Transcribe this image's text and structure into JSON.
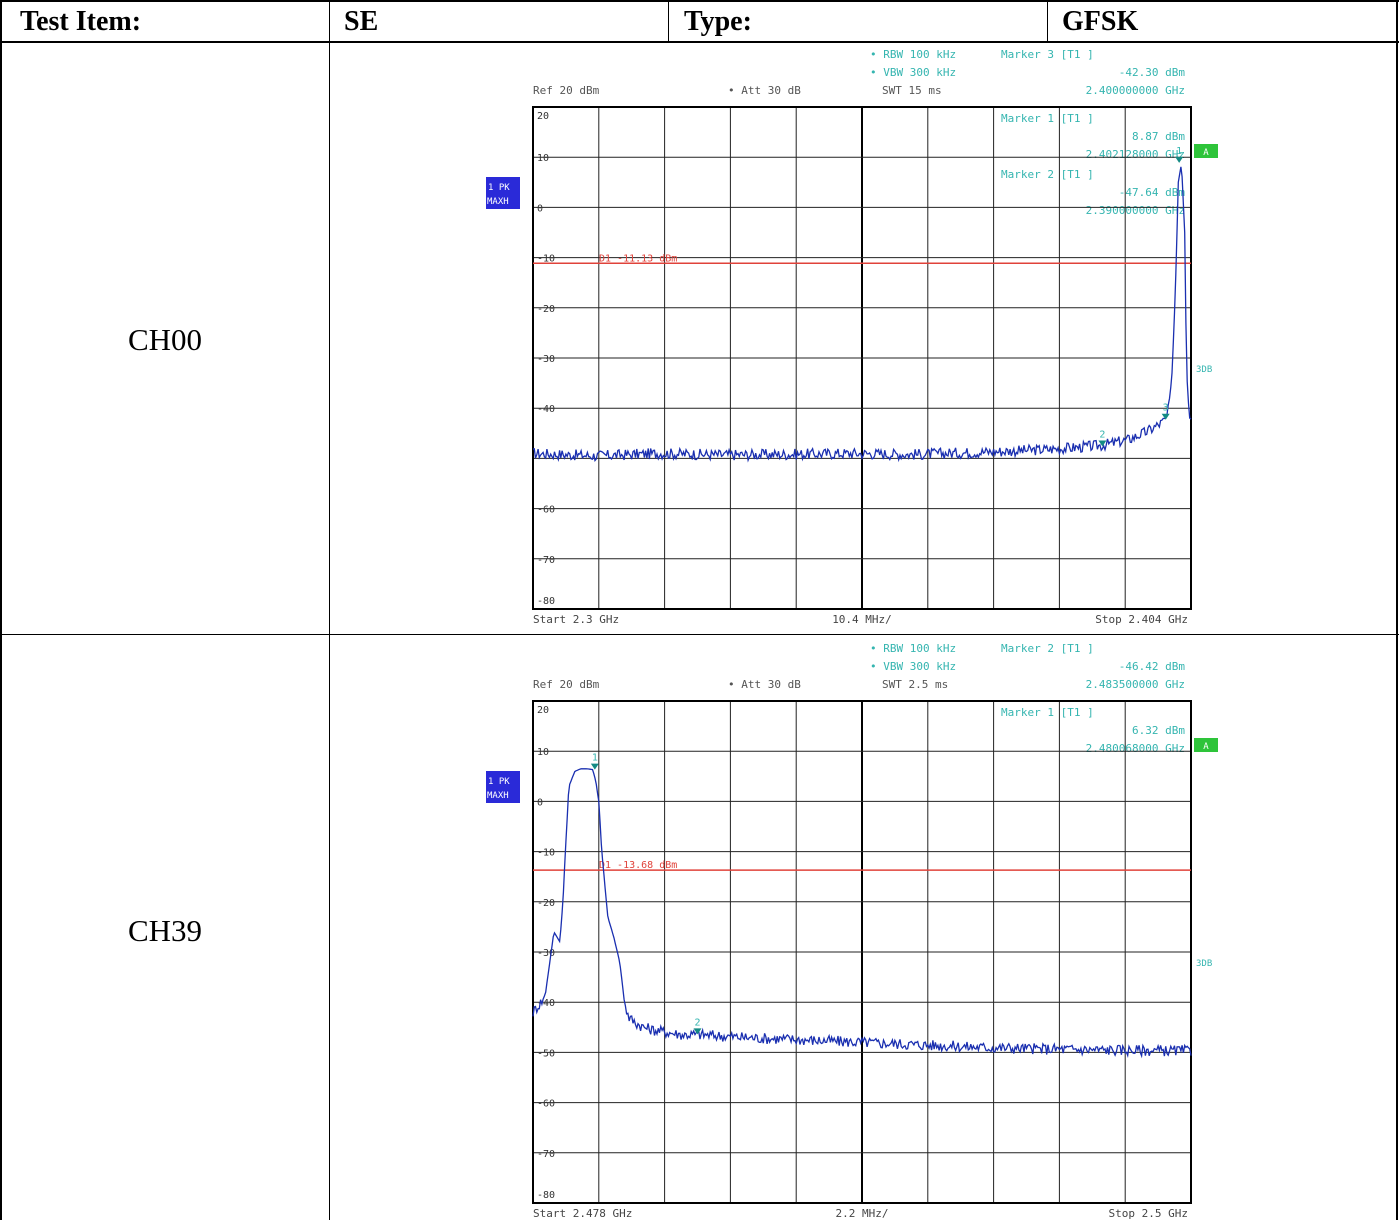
{
  "header": {
    "test_item_label": "Test Item:",
    "test_item_value": "SE",
    "type_label": "Type:",
    "type_value": "GFSK"
  },
  "colors": {
    "trace": "#1a2fb0",
    "limit_line": "#e0423a",
    "annotation": "#35b5b0",
    "marker": "#138a84",
    "badge_blue": "#2a2ad8",
    "badge_green": "#2ec43a"
  },
  "rows": [
    {
      "channel": "CH00",
      "plot": {
        "settings": {
          "rbw": "RBW 100 kHz",
          "vbw": "VBW 300 kHz",
          "ref": "Ref  20 dBm",
          "att": "Att  30 dB",
          "swt": "SWT 15 ms"
        },
        "marker_readouts": [
          {
            "label": "Marker 3 [T1 ]",
            "level": "-42.30 dBm",
            "freq": "2.400000000 GHz"
          },
          {
            "label": "Marker 1 [T1 ]",
            "level": "8.87 dBm",
            "freq": "2.402128000 GHz"
          },
          {
            "label": "Marker 2 [T1 ]",
            "level": "-47.64 dBm",
            "freq": "2.390000000 GHz"
          }
        ],
        "trace_badge": [
          "1 PK",
          "MAXH"
        ],
        "badge_a": "A",
        "side_label": "3DB",
        "limit_label": "D1 -11.13 dBm",
        "start": "Start 2.3 GHz",
        "span_div": "10.4 MHz/",
        "stop": "Stop 2.404 GHz"
      },
      "chart_data": {
        "type": "line",
        "x_range_ghz": [
          2.3,
          2.404
        ],
        "ylim": [
          -80,
          20
        ],
        "y_ticks": [
          20,
          10,
          0,
          -10,
          -20,
          -30,
          -40,
          -60,
          -70,
          -80
        ],
        "y_tick_labels": [
          "20",
          "10",
          "0",
          "-10",
          "-20",
          "-30",
          "-40",
          "-60",
          "-70",
          "-80"
        ],
        "grid": true,
        "limit_line_dbm": -11.13,
        "markers": [
          {
            "id": "1",
            "x_ghz": 2.402128,
            "y_dbm": 8.87
          },
          {
            "id": "2",
            "x_ghz": 2.39,
            "y_dbm": -47.64
          },
          {
            "id": "3",
            "x_ghz": 2.4,
            "y_dbm": -42.3
          }
        ],
        "series": [
          {
            "x": [
              2.3,
              2.31,
              2.32,
              2.33,
              2.34,
              2.35,
              2.36,
              2.37,
              2.38,
              2.385,
              2.39,
              2.394,
              2.397,
              2.399,
              2.4,
              2.4005,
              2.401,
              2.4015,
              2.402,
              2.4025,
              2.403,
              2.4033,
              2.4036,
              2.404
            ],
            "y": [
              -49,
              -49.5,
              -49,
              -49.3,
              -49.2,
              -49,
              -49.2,
              -48.8,
              -48.3,
              -47.9,
              -47.4,
              -46.3,
              -44.7,
              -43.2,
              -42.3,
              -40,
              -33,
              -18,
              5,
              8.87,
              -5,
              -32,
              -40,
              -42
            ]
          }
        ]
      }
    },
    {
      "channel": "CH39",
      "plot": {
        "settings": {
          "rbw": "RBW 100 kHz",
          "vbw": "VBW 300 kHz",
          "ref": "Ref  20 dBm",
          "att": "Att  30 dB",
          "swt": "SWT 2.5 ms"
        },
        "marker_readouts": [
          {
            "label": "Marker 2 [T1 ]",
            "level": "-46.42 dBm",
            "freq": "2.483500000 GHz"
          },
          {
            "label": "Marker 1 [T1 ]",
            "level": "6.32 dBm",
            "freq": "2.480068000 GHz"
          }
        ],
        "trace_badge": [
          "1 PK",
          "MAXH"
        ],
        "badge_a": "A",
        "side_label": "3DB",
        "limit_label": "D1 -13.68 dBm",
        "start": "Start 2.478 GHz",
        "span_div": "2.2 MHz/",
        "stop": "Stop 2.5 GHz"
      },
      "chart_data": {
        "type": "line",
        "x_range_ghz": [
          2.478,
          2.5
        ],
        "ylim": [
          -80,
          20
        ],
        "y_ticks": [
          20,
          10,
          0,
          -10,
          -20,
          -30,
          -40,
          -50,
          -60,
          -70,
          -80
        ],
        "y_tick_labels": [
          "20",
          "10",
          "0",
          "-10",
          "-20",
          "-30",
          "-40",
          "-50",
          "-60",
          "-70",
          "-80"
        ],
        "grid": true,
        "limit_line_dbm": -13.68,
        "markers": [
          {
            "id": "1",
            "x_ghz": 2.480068,
            "y_dbm": 6.32
          },
          {
            "id": "2",
            "x_ghz": 2.4835,
            "y_dbm": -46.42
          }
        ],
        "series": [
          {
            "x": [
              2.478,
              2.4784,
              2.4787,
              2.4789,
              2.479,
              2.4791,
              2.4792,
              2.4794,
              2.4796,
              2.4798,
              2.48,
              2.4801,
              2.4802,
              2.4803,
              2.4805,
              2.4807,
              2.4809,
              2.481,
              2.4811,
              2.4812,
              2.4814,
              2.4817,
              2.482,
              2.4825,
              2.483,
              2.4835,
              2.485,
              2.487,
              2.489,
              2.491,
              2.493,
              2.495,
              2.497,
              2.5
            ],
            "y": [
              -42,
              -39,
              -26,
              -28,
              -20,
              -8,
              3,
              6,
              6.5,
              6.5,
              6.32,
              4,
              0,
              -10,
              -23,
              -27,
              -32,
              -37,
              -41,
              -43,
              -44,
              -45,
              -45.5,
              -46,
              -46.5,
              -46.42,
              -47,
              -47.5,
              -48,
              -48.5,
              -49,
              -49.3,
              -49.5,
              -49.7
            ]
          }
        ]
      }
    }
  ]
}
